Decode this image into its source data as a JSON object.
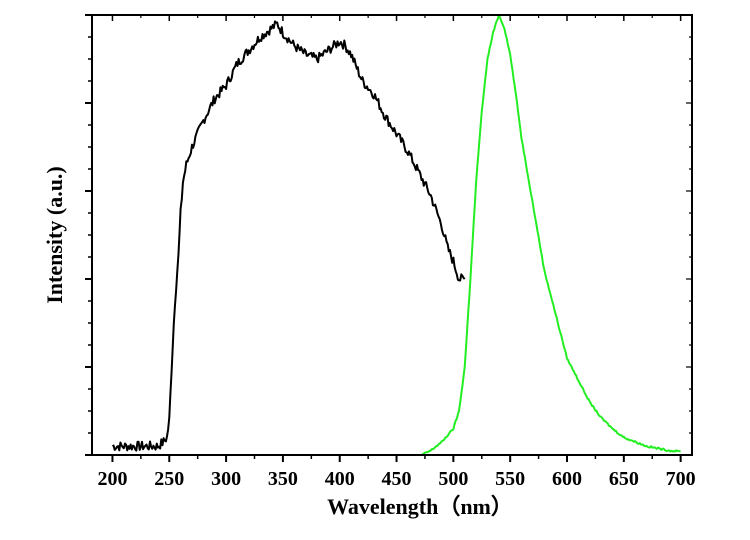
{
  "chart_data": {
    "type": "line",
    "title": "",
    "xlabel": "Wavelength（nm）",
    "ylabel": "Intensity (a.u.)",
    "xlim": [
      182,
      710
    ],
    "ylim": [
      0,
      1.0
    ],
    "x_ticks": [
      200,
      250,
      300,
      350,
      400,
      450,
      500,
      550,
      600,
      650,
      700
    ],
    "x_tick_labels": [
      "200",
      "250",
      "300",
      "350",
      "400",
      "450",
      "500",
      "550",
      "600",
      "650",
      "700"
    ],
    "y_tick_labels_shown": false,
    "grid": false,
    "legend": "none",
    "series": [
      {
        "color": "#000000",
        "x": [
          200,
          210,
          220,
          230,
          240,
          245,
          248,
          250,
          253,
          255,
          258,
          260,
          262,
          265,
          270,
          275,
          280,
          290,
          300,
          310,
          320,
          330,
          340,
          345,
          350,
          360,
          370,
          380,
          390,
          400,
          405,
          410,
          420,
          430,
          440,
          450,
          460,
          470,
          480,
          490,
          495,
          500,
          505,
          510
        ],
        "y": [
          0.02,
          0.02,
          0.02,
          0.02,
          0.02,
          0.03,
          0.04,
          0.08,
          0.25,
          0.35,
          0.45,
          0.55,
          0.62,
          0.66,
          0.7,
          0.73,
          0.76,
          0.81,
          0.84,
          0.89,
          0.92,
          0.95,
          0.97,
          0.98,
          0.96,
          0.93,
          0.91,
          0.9,
          0.92,
          0.94,
          0.93,
          0.91,
          0.85,
          0.82,
          0.77,
          0.73,
          0.69,
          0.64,
          0.59,
          0.52,
          0.47,
          0.44,
          0.4,
          0.4
        ]
      },
      {
        "color": "#22ee22",
        "x": [
          472,
          480,
          490,
          500,
          505,
          510,
          515,
          520,
          525,
          530,
          535,
          540,
          545,
          550,
          555,
          560,
          570,
          580,
          590,
          600,
          610,
          620,
          630,
          640,
          650,
          660,
          670,
          680,
          690,
          700
        ],
        "y": [
          0.0,
          0.01,
          0.03,
          0.06,
          0.1,
          0.2,
          0.4,
          0.62,
          0.78,
          0.9,
          0.96,
          1.0,
          0.97,
          0.91,
          0.82,
          0.72,
          0.57,
          0.42,
          0.32,
          0.22,
          0.17,
          0.12,
          0.085,
          0.06,
          0.04,
          0.03,
          0.02,
          0.015,
          0.01,
          0.008
        ]
      }
    ]
  }
}
